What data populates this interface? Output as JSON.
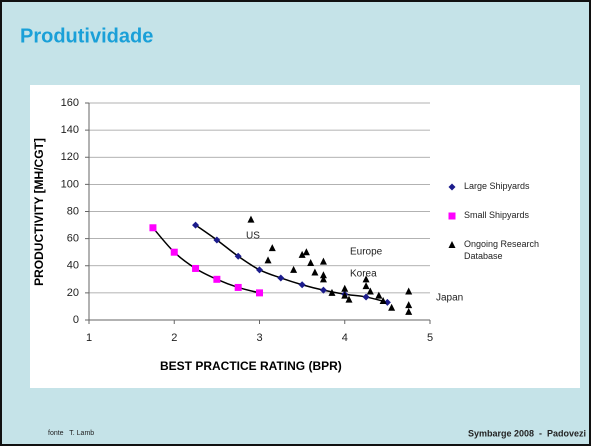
{
  "slide": {
    "title": "Produtividade",
    "footer_left": "fonte   T. Lamb",
    "footer_right": "Symbarge 2008  -  Padovezi"
  },
  "chart_data": {
    "type": "scatter",
    "xlabel": "BEST PRACTICE RATING (BPR)",
    "ylabel": "PRODUCTIVITY [MH/CGT]",
    "xlim": [
      1,
      5
    ],
    "xticks": [
      1,
      2,
      3,
      4,
      5
    ],
    "ylim": [
      0,
      160
    ],
    "yticks": [
      0,
      20,
      40,
      60,
      80,
      100,
      120,
      140,
      160
    ],
    "grid": true,
    "legend": "right",
    "trend_lines": true,
    "annotations": [
      "US",
      "Europe",
      "Korea",
      "Japan"
    ],
    "series": [
      {
        "name": "Large Shipyards",
        "color": "#1c1c8c",
        "marker": "diamond",
        "x": [
          2.25,
          2.5,
          2.75,
          3,
          3.25,
          3.5,
          3.75,
          4,
          4.25,
          4.5
        ],
        "values": [
          70,
          59,
          47,
          37,
          31,
          26,
          22,
          19,
          17,
          13
        ]
      },
      {
        "name": "Small Shipyards",
        "color": "#ff00ff",
        "marker": "square",
        "x": [
          1.75,
          2,
          2.25,
          2.5,
          2.75,
          3
        ],
        "values": [
          68,
          50,
          38,
          30,
          24,
          20
        ]
      },
      {
        "name": "Ongoing Research Database",
        "color": "#000000",
        "marker": "triangle",
        "x": [
          2.9,
          3.15,
          3.1,
          3.5,
          3.55,
          3.4,
          3.65,
          3.6,
          3.75,
          3.75,
          3.75,
          3.85,
          4,
          4,
          4.05,
          4.25,
          4.25,
          4.3,
          4.4,
          4.45,
          4.55,
          4.75,
          4.75,
          4.75
        ],
        "values": [
          74,
          53,
          44,
          48,
          50,
          37,
          35,
          42,
          43,
          33,
          30,
          20,
          23,
          18,
          15,
          30,
          25,
          21,
          18,
          14,
          9,
          21,
          11,
          6
        ]
      }
    ]
  }
}
